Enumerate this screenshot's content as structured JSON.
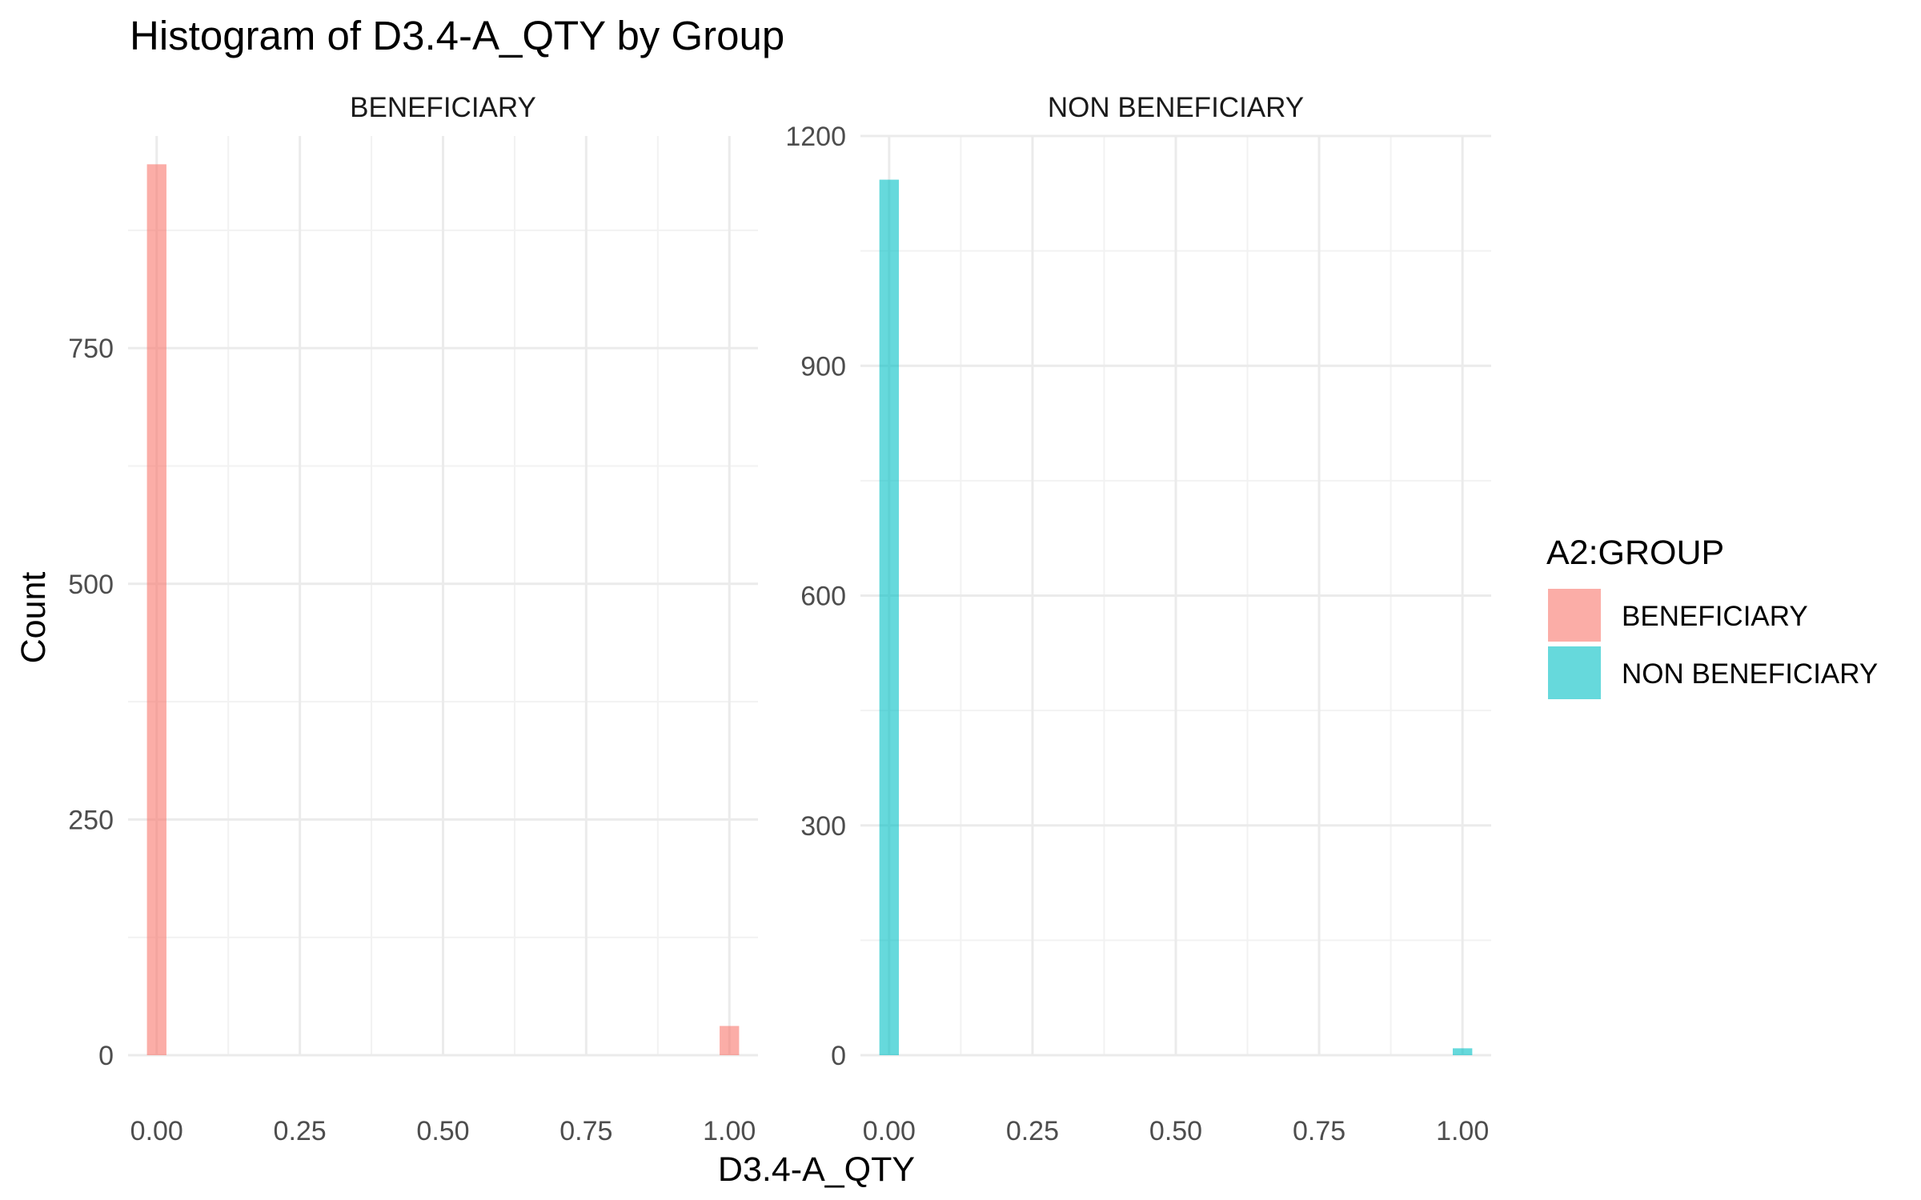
{
  "chart_data": {
    "type": "bar",
    "title": "Histogram of D3.4-A_QTY by Group",
    "xlabel": "D3.4-A_QTY",
    "ylabel": "Count",
    "grid": true,
    "legend_placement": "right",
    "legend": {
      "title": "A2:GROUP",
      "items": [
        {
          "label": "BENEFICIARY",
          "color": "#F8766D"
        },
        {
          "label": "NON BENEFICIARY",
          "color": "#00BFC4"
        }
      ]
    },
    "x_ticks": [
      "0.00",
      "0.25",
      "0.50",
      "0.75",
      "1.00"
    ],
    "panels": [
      {
        "strip": "BENEFICIARY",
        "color": "#F8766D",
        "xlim": [
          -0.05,
          1.05
        ],
        "ylim": [
          0,
          975
        ],
        "y_ticks": [
          0,
          250,
          500,
          750
        ],
        "bins": [
          {
            "x": 0,
            "count": 945
          },
          {
            "x": 1,
            "count": 31
          }
        ]
      },
      {
        "strip": "NON BENEFICIARY",
        "color": "#00BFC4",
        "xlim": [
          -0.05,
          1.05
        ],
        "ylim": [
          0,
          1200
        ],
        "y_ticks": [
          0,
          300,
          600,
          900,
          1200
        ],
        "bins": [
          {
            "x": 0,
            "count": 1143
          },
          {
            "x": 1,
            "count": 9
          }
        ]
      }
    ]
  }
}
